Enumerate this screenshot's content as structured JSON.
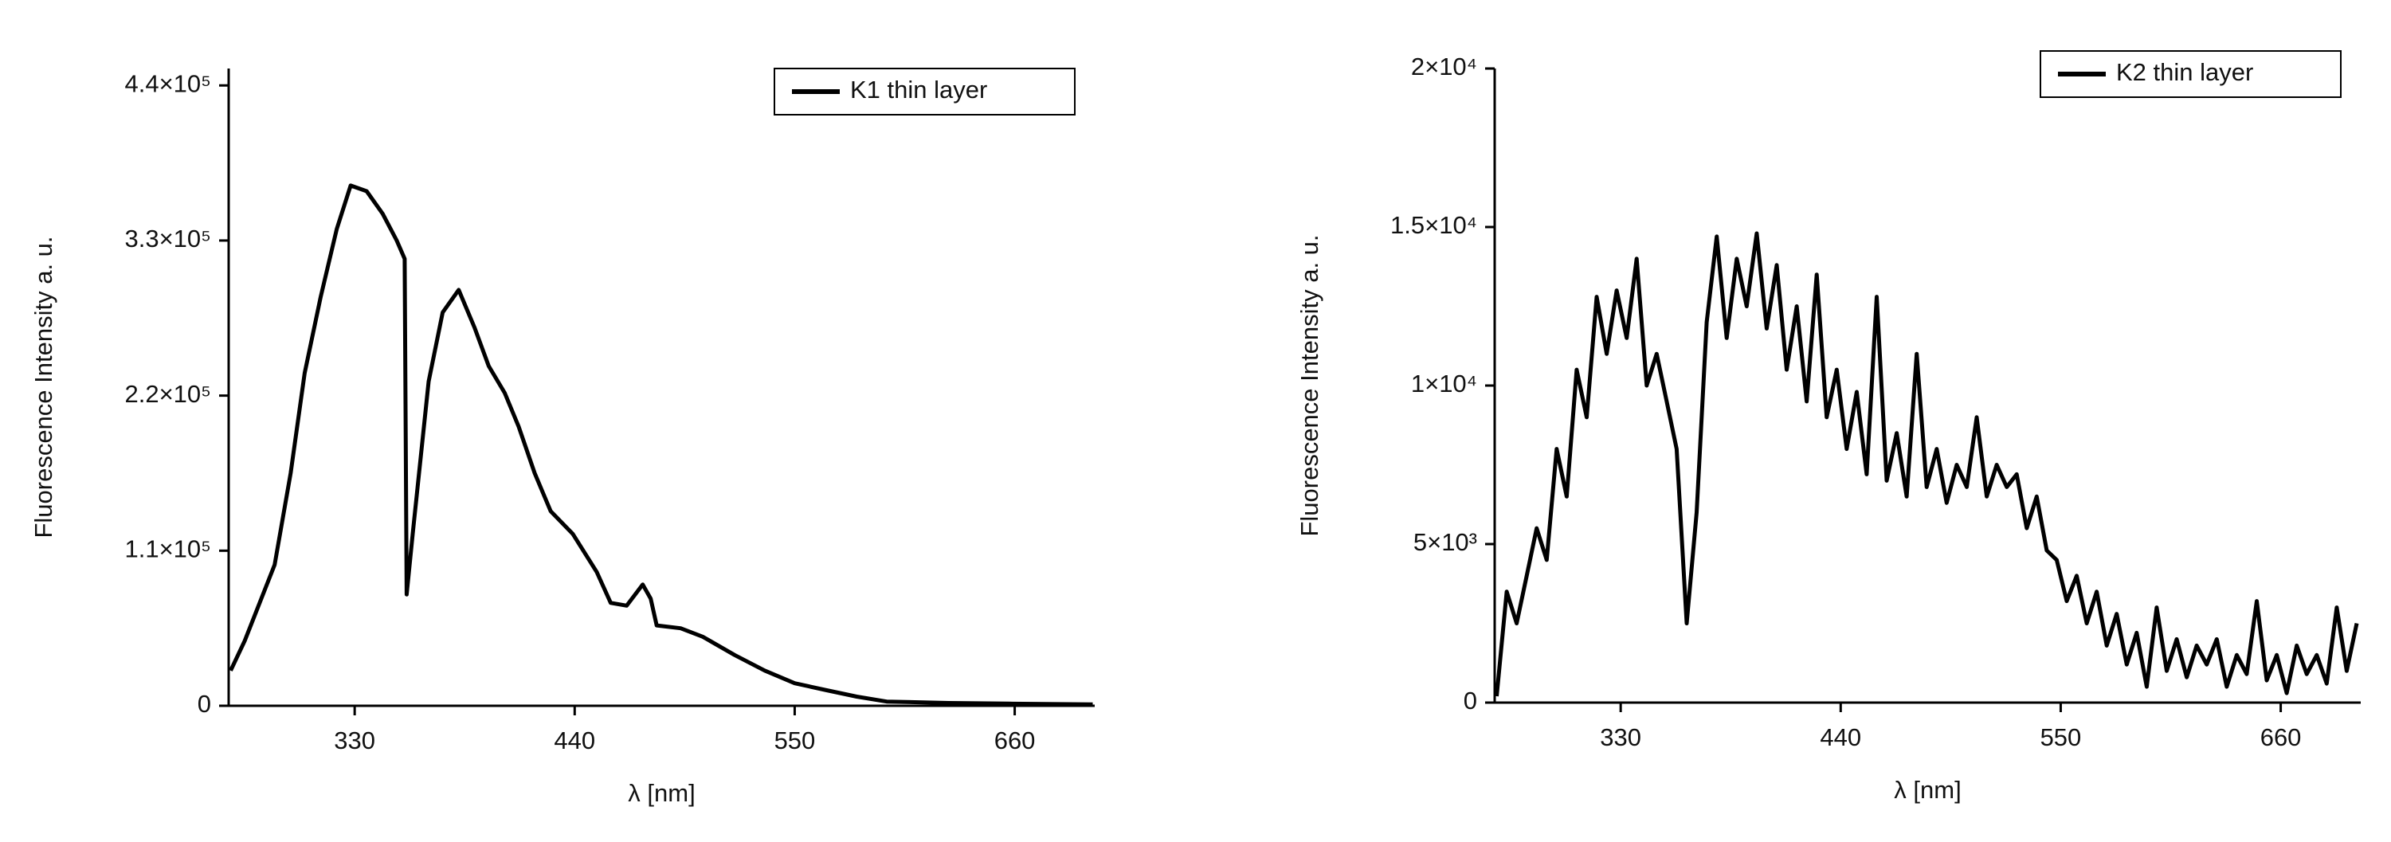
{
  "chart_data": [
    {
      "type": "line",
      "xlabel": "λ [nm]",
      "ylabel": "Fluorescence Intensity a. u.",
      "x": [
        268,
        275,
        290,
        298,
        305,
        313,
        321,
        328,
        336,
        344,
        351,
        355,
        356,
        359,
        367,
        374,
        382,
        390,
        397,
        405,
        412,
        420,
        428,
        439,
        451,
        458,
        466,
        474,
        478,
        481,
        493,
        504,
        520,
        535,
        550,
        566,
        581,
        596,
        627,
        657,
        699
      ],
      "series": [
        {
          "name": "K1 thin layer",
          "color": "#000000",
          "values": [
            25000,
            46000,
            100000,
            165000,
            236000,
            290000,
            338000,
            369000,
            365000,
            349000,
            330000,
            317000,
            79000,
            122000,
            230000,
            279000,
            295000,
            268000,
            241000,
            222000,
            198000,
            165000,
            138000,
            122000,
            95000,
            73000,
            71000,
            86000,
            76000,
            57000,
            55000,
            49000,
            36000,
            25000,
            16000,
            11000,
            6500,
            3000,
            2000,
            1500,
            1000
          ]
        }
      ],
      "xlim": [
        267,
        700
      ],
      "xticks": [
        330,
        440,
        550,
        660
      ],
      "ylim": [
        0,
        452000
      ],
      "yticks": [
        0,
        {
          "value": 110000,
          "label": "1.1×10⁵"
        },
        {
          "value": 220000,
          "label": "2.2×10⁵"
        },
        {
          "value": 330000,
          "label": "3.3×10⁵"
        },
        {
          "value": 440000,
          "label": "4.4×10⁵"
        }
      ],
      "legend": "top-right"
    },
    {
      "type": "line",
      "xlabel": "λ [nm]",
      "ylabel": "Fluorescence Intensity a. u.",
      "x": [
        268,
        273,
        278,
        283,
        288,
        293,
        298,
        303,
        308,
        313,
        318,
        323,
        328,
        333,
        338,
        343,
        348,
        353,
        358,
        363,
        368,
        373,
        378,
        383,
        388,
        393,
        398,
        403,
        408,
        413,
        418,
        423,
        428,
        433,
        438,
        443,
        448,
        453,
        458,
        463,
        468,
        473,
        478,
        483,
        488,
        493,
        498,
        503,
        508,
        513,
        518,
        523,
        528,
        533,
        538,
        543,
        548,
        553,
        558,
        563,
        568,
        573,
        578,
        583,
        588,
        593,
        598,
        603,
        608,
        613,
        618,
        623,
        628,
        633,
        638,
        643,
        648,
        653,
        658,
        663,
        668,
        673,
        678,
        683,
        688,
        693,
        698
      ],
      "series": [
        {
          "name": "K2 thin layer",
          "color": "#000000",
          "values": [
            200,
            3500,
            2500,
            4000,
            5500,
            4500,
            8000,
            6500,
            10500,
            9000,
            12800,
            11000,
            13000,
            11500,
            14000,
            10000,
            11000,
            9500,
            8000,
            2500,
            6000,
            12000,
            14700,
            11500,
            14000,
            12500,
            14800,
            11800,
            13800,
            10500,
            12500,
            9500,
            13500,
            9000,
            10500,
            8000,
            9800,
            7200,
            12800,
            7000,
            8500,
            6500,
            11000,
            6800,
            8000,
            6300,
            7500,
            6800,
            9000,
            6500,
            7500,
            6800,
            7200,
            5500,
            6500,
            4800,
            4500,
            3200,
            4000,
            2500,
            3500,
            1800,
            2800,
            1200,
            2200,
            500,
            3000,
            1000,
            2000,
            800,
            1800,
            1200,
            2000,
            500,
            1500,
            900,
            3200,
            700,
            1500,
            300,
            1800,
            900,
            1500,
            600,
            3000,
            1000,
            2500
          ]
        }
      ],
      "xlim": [
        267,
        700
      ],
      "xticks": [
        330,
        440,
        550,
        660
      ],
      "ylim": [
        0,
        20000
      ],
      "yticks": [
        0,
        {
          "value": 5000,
          "label": "5×10³"
        },
        {
          "value": 10000,
          "label": "1×10⁴"
        },
        {
          "value": 15000,
          "label": "1.5×10⁴"
        },
        {
          "value": 20000,
          "label": "2×10⁴"
        }
      ],
      "legend": "top-right"
    }
  ]
}
